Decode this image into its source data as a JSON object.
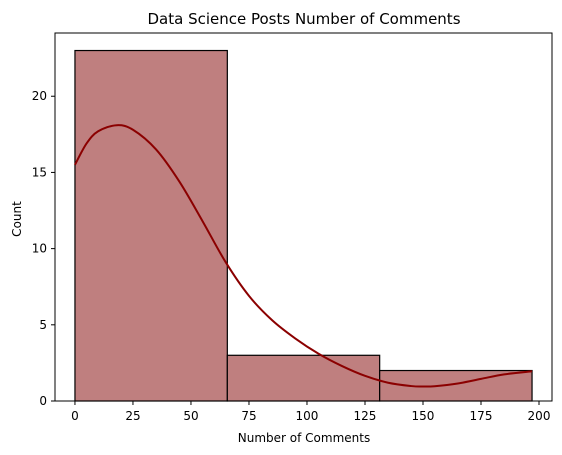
{
  "chart_data": {
    "type": "bar",
    "title": "Data Science Posts Number of Comments",
    "xlabel": "Number of Comments",
    "ylabel": "Count",
    "bins": [
      {
        "start": 0,
        "end": 65.67,
        "count": 23
      },
      {
        "start": 65.67,
        "end": 131.33,
        "count": 3
      },
      {
        "start": 131.33,
        "end": 197,
        "count": 2
      }
    ],
    "kde": {
      "x": [
        0,
        5,
        10,
        18,
        25,
        35,
        45,
        55,
        65,
        75,
        85,
        95,
        105,
        115,
        125,
        135,
        145,
        150,
        155,
        165,
        175,
        185,
        197
      ],
      "y": [
        15.5,
        16.9,
        17.7,
        18.1,
        17.8,
        16.5,
        14.4,
        11.8,
        9.1,
        6.9,
        5.3,
        4.1,
        3.1,
        2.3,
        1.65,
        1.2,
        0.98,
        0.95,
        0.97,
        1.15,
        1.45,
        1.75,
        1.95
      ]
    },
    "xlim": [
      -8.6,
      205.6
    ],
    "ylim": [
      0,
      24.15
    ],
    "xticks": [
      0,
      25,
      50,
      75,
      100,
      125,
      150,
      175,
      200
    ],
    "yticks": [
      0,
      5,
      10,
      15,
      20
    ],
    "colors": {
      "bar_fill": "#bf7f7f",
      "kde_line": "#8b0000",
      "bar_edge": "#000000"
    },
    "grid": false
  }
}
